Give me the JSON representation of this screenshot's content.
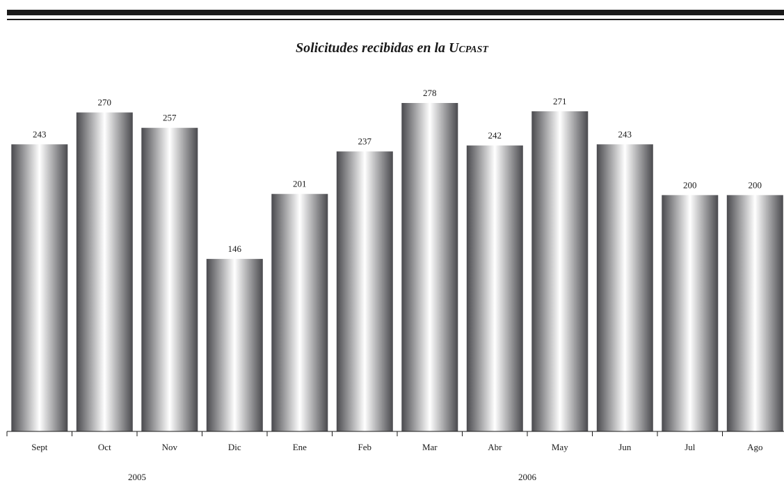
{
  "chart_data": {
    "type": "bar",
    "title": "Solicitudes recibidas en la ",
    "title_smallcaps": "Ucpast",
    "categories": [
      "Sept",
      "Oct",
      "Nov",
      "Dic",
      "Ene",
      "Feb",
      "Mar",
      "Abr",
      "May",
      "Jun",
      "Jul",
      "Ago"
    ],
    "values": [
      243,
      270,
      257,
      146,
      201,
      237,
      278,
      242,
      271,
      243,
      200,
      200
    ],
    "year_groups": [
      {
        "label": "2005",
        "categories": [
          "Sept",
          "Oct",
          "Nov",
          "Dic"
        ]
      },
      {
        "label": "2006",
        "categories": [
          "Ene",
          "Feb",
          "Mar",
          "Abr",
          "May",
          "Jun",
          "Jul",
          "Ago"
        ]
      }
    ],
    "ylim": [
      0,
      278
    ],
    "xlabel": "",
    "ylabel": "",
    "grid": false,
    "data_labels": true,
    "bar_style": "cylindrical grey gradient",
    "colors": {
      "bar_dark": "#4a4a4e",
      "bar_light": "#ffffff",
      "text": "#1a1a1a",
      "rules": "#1a1a1a"
    }
  }
}
